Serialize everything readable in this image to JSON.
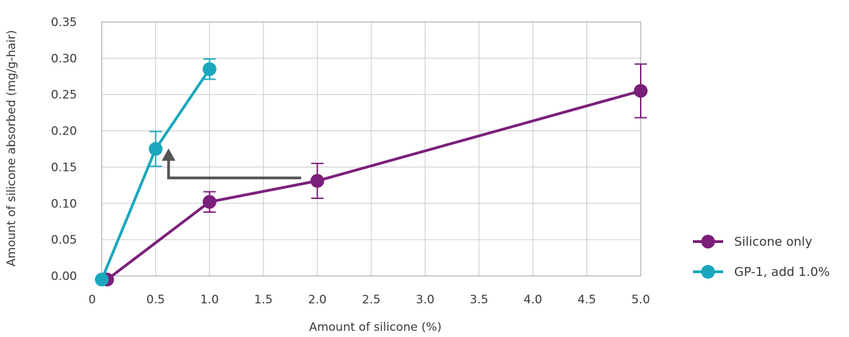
{
  "chart_data": {
    "type": "line",
    "xlabel": "Amount of silicone (%)",
    "ylabel": "Amount of silicone absorbed (mg/g-hair)",
    "xlim": [
      0,
      5.0
    ],
    "ylim": [
      0,
      0.35
    ],
    "x_ticks": [
      0,
      0.5,
      1.0,
      1.5,
      2.0,
      2.5,
      3.0,
      3.5,
      4.0,
      4.5,
      5.0
    ],
    "x_tick_labels": [
      "0",
      "0.5",
      "1.0",
      "1.5",
      "2.0",
      "2.5",
      "3.0",
      "3.5",
      "4.0",
      "4.5",
      "5.0"
    ],
    "y_ticks": [
      0,
      0.05,
      0.1,
      0.15,
      0.2,
      0.25,
      0.3,
      0.35
    ],
    "y_tick_labels": [
      "0.00",
      "0.05",
      "0.10",
      "0.15",
      "0.20",
      "0.25",
      "0.30",
      "0.35"
    ],
    "grid": true,
    "legend_position": "right",
    "series": [
      {
        "name": "Silicone only",
        "color": "#7b1f7a",
        "points": [
          {
            "x": 0.05,
            "y": -0.005,
            "err": 0
          },
          {
            "x": 1.0,
            "y": 0.102,
            "err": 0.014
          },
          {
            "x": 2.0,
            "y": 0.131,
            "err": 0.024
          },
          {
            "x": 5.0,
            "y": 0.255,
            "err": 0.037
          }
        ]
      },
      {
        "name": "GP-1, add 1.0%",
        "color": "#1aa7bd",
        "points": [
          {
            "x": 0.0,
            "y": -0.005,
            "err": 0
          },
          {
            "x": 0.5,
            "y": 0.175,
            "err": 0.024
          },
          {
            "x": 1.0,
            "y": 0.285,
            "err": 0.014
          }
        ]
      }
    ],
    "annotation": {
      "type": "arrow",
      "color": "#555555",
      "from": {
        "x": 1.85,
        "y": 0.135
      },
      "corner": {
        "x": 0.62,
        "y": 0.135
      },
      "to": {
        "x": 0.62,
        "y": 0.17
      }
    }
  }
}
